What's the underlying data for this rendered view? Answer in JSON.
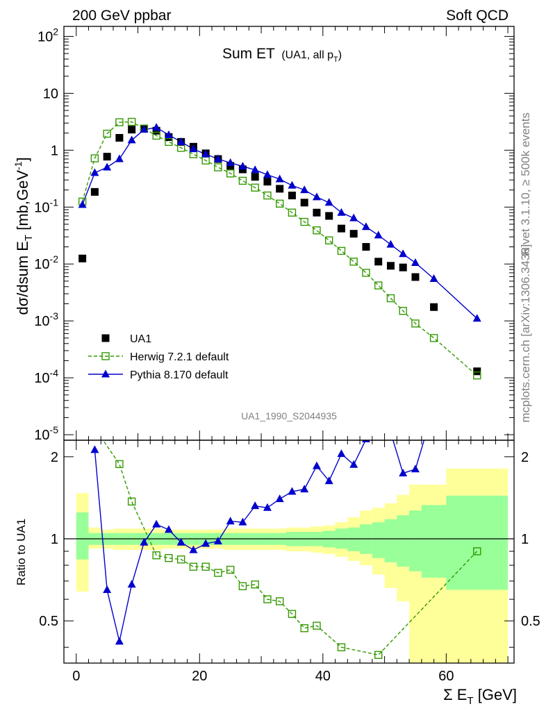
{
  "header": {
    "left": "200 GeV ppbar",
    "right": "Soft QCD"
  },
  "side": {
    "rivet": "Rivet 3.1.10, ≥ 500k events",
    "source": "mcplots.cern.ch [arXiv:1306.3436]"
  },
  "colors": {
    "data": "#000000",
    "herwig": "#339900",
    "pythia": "#0000cc",
    "band_outer": "#ffff99",
    "band_inner": "#99ff99"
  },
  "chart_data": [
    {
      "type": "scatter",
      "panel": "main",
      "title": "Sum ET",
      "subtitle": "(UA1, all p",
      "subtitle_sub": "T",
      "subtitle_end": ")",
      "ylabel": "dσ/dsum E",
      "ylabel_sub": "T",
      "ylabel_unit": " [mb,GeV",
      "ylabel_sup": "-1",
      "ylabel_end": "]",
      "yscale": "log",
      "ylim": [
        8e-06,
        150
      ],
      "xlim": [
        -2,
        71
      ],
      "yticks": [
        {
          "base": "10",
          "exp": "-5",
          "value": 1e-05
        },
        {
          "base": "10",
          "exp": "-4",
          "value": 0.0001
        },
        {
          "base": "10",
          "exp": "-3",
          "value": 0.001
        },
        {
          "base": "10",
          "exp": "-2",
          "value": 0.01
        },
        {
          "base": "10",
          "exp": "-1",
          "value": 0.1
        },
        {
          "base": "1",
          "exp": "",
          "value": 1
        },
        {
          "base": "10",
          "exp": "",
          "value": 10
        },
        {
          "base": "10",
          "exp": "2",
          "value": 100
        }
      ],
      "analysis_id": "UA1_1990_S2044935",
      "legend": [
        {
          "label": "UA1",
          "series": "data"
        },
        {
          "label": "Herwig 7.2.1 default",
          "series": "herwig"
        },
        {
          "label": "Pythia 8.170 default",
          "series": "pythia"
        }
      ],
      "series": [
        {
          "name": "UA1",
          "key": "data",
          "x": [
            1,
            3,
            5,
            7,
            9,
            11,
            13,
            15,
            17,
            19,
            21,
            23,
            25,
            27,
            29,
            31,
            33,
            35,
            37,
            39,
            41,
            43,
            45,
            47,
            49,
            51,
            53,
            55,
            58,
            65
          ],
          "y": [
            0.0125,
            0.185,
            0.77,
            1.65,
            2.3,
            2.4,
            2.2,
            1.7,
            1.4,
            1.15,
            0.88,
            0.7,
            0.53,
            0.46,
            0.34,
            0.28,
            0.21,
            0.16,
            0.12,
            0.08,
            0.07,
            0.042,
            0.034,
            0.02,
            0.011,
            0.0093,
            0.0087,
            0.0059,
            0.00175,
            0.00013
          ]
        },
        {
          "name": "Herwig 7.2.1 default",
          "key": "herwig",
          "x": [
            1,
            3,
            5,
            7,
            9,
            11,
            13,
            15,
            17,
            19,
            21,
            23,
            25,
            27,
            29,
            31,
            33,
            35,
            37,
            39,
            41,
            43,
            45,
            47,
            49,
            51,
            53,
            55,
            58,
            65
          ],
          "y": [
            0.125,
            0.72,
            1.95,
            3.1,
            3.15,
            2.4,
            1.8,
            1.4,
            1.1,
            0.85,
            0.66,
            0.5,
            0.39,
            0.29,
            0.22,
            0.16,
            0.115,
            0.08,
            0.055,
            0.039,
            0.026,
            0.017,
            0.011,
            0.007,
            0.0042,
            0.0025,
            0.0015,
            0.0009,
            0.0005,
            0.00011
          ]
        },
        {
          "name": "Pythia 8.170 default",
          "key": "pythia",
          "x": [
            1,
            3,
            5,
            7,
            9,
            11,
            13,
            15,
            17,
            19,
            21,
            23,
            25,
            27,
            29,
            31,
            33,
            35,
            37,
            39,
            41,
            43,
            45,
            47,
            49,
            51,
            53,
            55,
            58,
            65
          ],
          "y": [
            0.11,
            0.4,
            0.5,
            0.7,
            1.5,
            2.3,
            2.5,
            1.85,
            1.4,
            1.05,
            0.85,
            0.7,
            0.6,
            0.52,
            0.45,
            0.37,
            0.31,
            0.24,
            0.2,
            0.15,
            0.12,
            0.08,
            0.064,
            0.045,
            0.032,
            0.022,
            0.015,
            0.0105,
            0.0055,
            0.0011
          ]
        }
      ]
    },
    {
      "type": "line",
      "panel": "ratio",
      "ylabel": "Ratio to UA1",
      "xlabel": "Σ E",
      "xlabel_sub": "T",
      "xlabel_unit": " [GeV]",
      "xlim": [
        -2,
        71
      ],
      "ylim": [
        0.35,
        2.3
      ],
      "yscale": "log",
      "xticks": [
        0,
        20,
        40,
        60
      ],
      "yticks": [
        0.5,
        1,
        2
      ],
      "ytick_labels": [
        "0.5",
        "1",
        "2"
      ],
      "reference_line": 1,
      "uncertainty_bands": [
        {
          "x0": 0,
          "x1": 2,
          "outer": [
            0.64,
            1.47
          ],
          "inner": [
            0.84,
            1.25
          ]
        },
        {
          "x0": 2,
          "x1": 4,
          "outer": [
            0.92,
            1.1
          ],
          "inner": [
            0.95,
            1.05
          ]
        },
        {
          "x0": 4,
          "x1": 6,
          "outer": [
            0.92,
            1.08
          ],
          "inner": [
            0.95,
            1.05
          ]
        },
        {
          "x0": 6,
          "x1": 8,
          "outer": [
            0.91,
            1.09
          ],
          "inner": [
            0.95,
            1.05
          ]
        },
        {
          "x0": 8,
          "x1": 10,
          "outer": [
            0.91,
            1.09
          ],
          "inner": [
            0.95,
            1.05
          ]
        },
        {
          "x0": 10,
          "x1": 12,
          "outer": [
            0.91,
            1.09
          ],
          "inner": [
            0.95,
            1.05
          ]
        },
        {
          "x0": 12,
          "x1": 14,
          "outer": [
            0.91,
            1.09
          ],
          "inner": [
            0.95,
            1.05
          ]
        },
        {
          "x0": 14,
          "x1": 16,
          "outer": [
            0.92,
            1.08
          ],
          "inner": [
            0.95,
            1.05
          ]
        },
        {
          "x0": 16,
          "x1": 18,
          "outer": [
            0.92,
            1.08
          ],
          "inner": [
            0.95,
            1.05
          ]
        },
        {
          "x0": 18,
          "x1": 20,
          "outer": [
            0.92,
            1.08
          ],
          "inner": [
            0.95,
            1.05
          ]
        },
        {
          "x0": 20,
          "x1": 22,
          "outer": [
            0.92,
            1.08
          ],
          "inner": [
            0.95,
            1.05
          ]
        },
        {
          "x0": 22,
          "x1": 24,
          "outer": [
            0.92,
            1.08
          ],
          "inner": [
            0.95,
            1.05
          ]
        },
        {
          "x0": 24,
          "x1": 26,
          "outer": [
            0.91,
            1.09
          ],
          "inner": [
            0.95,
            1.05
          ]
        },
        {
          "x0": 26,
          "x1": 28,
          "outer": [
            0.91,
            1.09
          ],
          "inner": [
            0.95,
            1.05
          ]
        },
        {
          "x0": 28,
          "x1": 30,
          "outer": [
            0.91,
            1.09
          ],
          "inner": [
            0.95,
            1.05
          ]
        },
        {
          "x0": 30,
          "x1": 32,
          "outer": [
            0.91,
            1.09
          ],
          "inner": [
            0.95,
            1.05
          ]
        },
        {
          "x0": 32,
          "x1": 34,
          "outer": [
            0.91,
            1.09
          ],
          "inner": [
            0.95,
            1.05
          ]
        },
        {
          "x0": 34,
          "x1": 36,
          "outer": [
            0.9,
            1.1
          ],
          "inner": [
            0.94,
            1.06
          ]
        },
        {
          "x0": 36,
          "x1": 38,
          "outer": [
            0.9,
            1.1
          ],
          "inner": [
            0.94,
            1.06
          ]
        },
        {
          "x0": 38,
          "x1": 40,
          "outer": [
            0.89,
            1.11
          ],
          "inner": [
            0.94,
            1.06
          ]
        },
        {
          "x0": 40,
          "x1": 42,
          "outer": [
            0.88,
            1.12
          ],
          "inner": [
            0.93,
            1.07
          ]
        },
        {
          "x0": 42,
          "x1": 44,
          "outer": [
            0.86,
            1.15
          ],
          "inner": [
            0.92,
            1.09
          ]
        },
        {
          "x0": 44,
          "x1": 46,
          "outer": [
            0.83,
            1.2
          ],
          "inner": [
            0.9,
            1.1
          ]
        },
        {
          "x0": 46,
          "x1": 48,
          "outer": [
            0.8,
            1.27
          ],
          "inner": [
            0.88,
            1.13
          ]
        },
        {
          "x0": 48,
          "x1": 50,
          "outer": [
            0.74,
            1.3
          ],
          "inner": [
            0.85,
            1.15
          ]
        },
        {
          "x0": 50,
          "x1": 52,
          "outer": [
            0.66,
            1.35
          ],
          "inner": [
            0.82,
            1.18
          ]
        },
        {
          "x0": 52,
          "x1": 54,
          "outer": [
            0.59,
            1.45
          ],
          "inner": [
            0.79,
            1.22
          ]
        },
        {
          "x0": 54,
          "x1": 56,
          "outer": [
            0.35,
            1.58
          ],
          "inner": [
            0.76,
            1.27
          ]
        },
        {
          "x0": 56,
          "x1": 60,
          "outer": [
            0.35,
            1.58
          ],
          "inner": [
            0.72,
            1.33
          ]
        },
        {
          "x0": 60,
          "x1": 70,
          "outer": [
            0.35,
            1.81
          ],
          "inner": [
            0.65,
            1.44
          ]
        }
      ],
      "series": [
        {
          "name": "Herwig 7.2.1 default",
          "key": "herwig",
          "x": [
            3,
            7,
            9,
            13,
            15,
            17,
            19,
            21,
            23,
            25,
            27,
            29,
            31,
            33,
            35,
            37,
            39,
            43,
            49,
            65
          ],
          "y": [
            2.55,
            1.88,
            1.37,
            0.87,
            0.85,
            0.84,
            0.79,
            0.79,
            0.75,
            0.77,
            0.67,
            0.68,
            0.6,
            0.59,
            0.53,
            0.47,
            0.48,
            0.4,
            0.375,
            0.9
          ]
        },
        {
          "name": "Pythia 8.170 default",
          "key": "pythia",
          "x": [
            3,
            5,
            7,
            9,
            11,
            13,
            15,
            17,
            19,
            21,
            23,
            25,
            27,
            29,
            31,
            33,
            35,
            37,
            39,
            41,
            43,
            45,
            47,
            49,
            51,
            53,
            55,
            57
          ],
          "y": [
            2.12,
            0.65,
            0.42,
            0.68,
            0.97,
            1.13,
            1.08,
            0.97,
            0.91,
            0.96,
            0.98,
            1.16,
            1.15,
            1.32,
            1.3,
            1.4,
            1.49,
            1.52,
            1.85,
            1.63,
            2.05,
            1.87,
            2.32,
            2.82,
            2.45,
            1.74,
            1.8,
            2.55
          ]
        }
      ]
    }
  ]
}
